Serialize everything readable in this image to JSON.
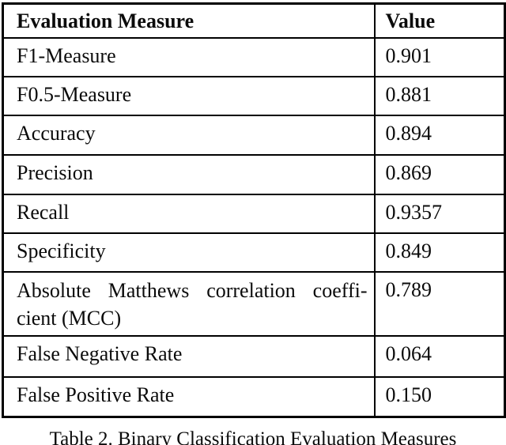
{
  "table": {
    "headers": [
      "Evaluation Measure",
      "Value"
    ],
    "rows": [
      {
        "measure": "F1-Measure",
        "value": "0.901"
      },
      {
        "measure": "F0.5-Measure",
        "value": "0.881"
      },
      {
        "measure": "Accuracy",
        "value": "0.894"
      },
      {
        "measure": "Precision",
        "value": "0.869"
      },
      {
        "measure": "Recall",
        "value": "0.9357"
      },
      {
        "measure": "Specificity",
        "value": "0.849"
      },
      {
        "measure_lines": [
          "Absolute Matthews correlation coeffi-",
          "cient (MCC)"
        ],
        "value": "0.789"
      },
      {
        "measure": "False Negative Rate",
        "value": "0.064"
      },
      {
        "measure": "False Positive Rate",
        "value": "0.150"
      }
    ]
  },
  "caption": "Table 2. Binary Classification Evaluation Measures",
  "colors": {
    "border": "#000000",
    "background": "#ffffff",
    "text": "#0b0b0b"
  }
}
